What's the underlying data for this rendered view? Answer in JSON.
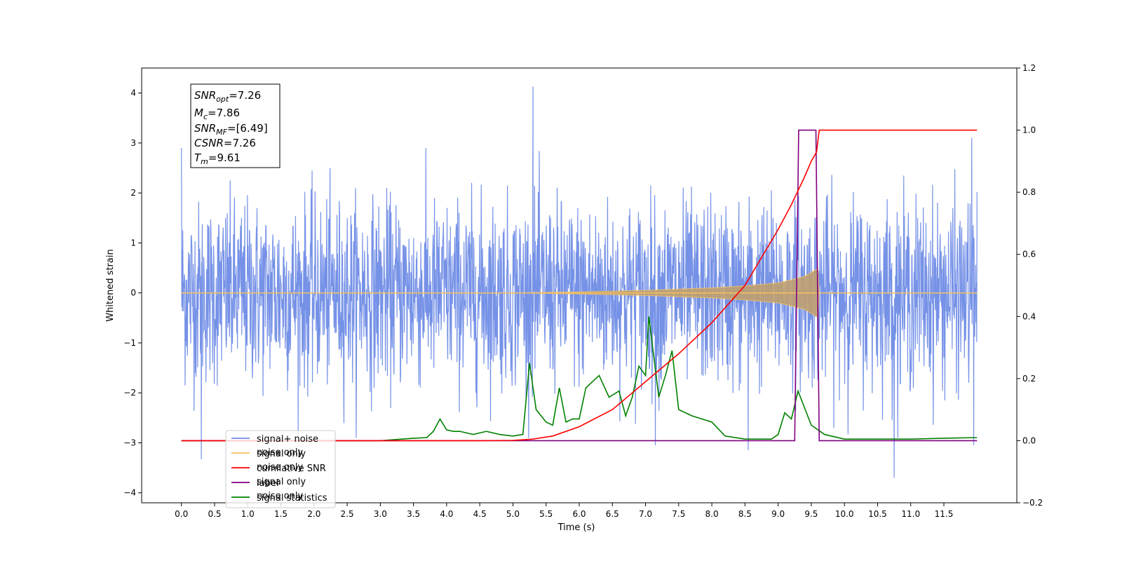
{
  "chart_data": {
    "type": "line",
    "xlabel": "Time (s)",
    "ylabel": "Whitened strain",
    "xlim": [
      -0.6,
      12.6
    ],
    "ylim": [
      -4.2,
      4.5
    ],
    "y2lim": [
      -0.2,
      1.2
    ],
    "x_ticks": [
      0.0,
      0.5,
      1.0,
      1.5,
      2.0,
      2.5,
      3.0,
      3.5,
      4.0,
      4.5,
      5.0,
      5.5,
      6.0,
      6.5,
      7.0,
      7.5,
      8.0,
      8.5,
      9.0,
      9.5,
      10.0,
      10.5,
      11.0,
      11.5
    ],
    "x_tick_labels": [
      "0.0",
      "0.5",
      "1.0",
      "1.5",
      "2.0",
      "2.5",
      "3.0",
      "3.5",
      "4.0",
      "4.5",
      "5.0",
      "5.5",
      "6.0",
      "6.5",
      "7.0",
      "7.5",
      "8.0",
      "8.5",
      "9.0",
      "9.5",
      "10.0",
      "10.5",
      "11.0",
      "11.5"
    ],
    "y_ticks": [
      -4,
      -3,
      -2,
      -1,
      0,
      1,
      2,
      3,
      4
    ],
    "y_tick_labels": [
      "−4",
      "−3",
      "−2",
      "−1",
      "0",
      "1",
      "2",
      "3",
      "4"
    ],
    "y2_ticks": [
      -0.2,
      0.0,
      0.2,
      0.4,
      0.6,
      0.8,
      1.0,
      1.2
    ],
    "y2_tick_labels": [
      "−0.2",
      "0.0",
      "0.2",
      "0.4",
      "0.6",
      "0.8",
      "1.0",
      "1.2"
    ],
    "grid": false,
    "legend_position": "lower-left",
    "series": [
      {
        "name": "signal+ noise",
        "axis": "left",
        "color": "#6f8ce6",
        "style": "dense noise band",
        "x_range": [
          0.0,
          12.0
        ],
        "typical_band": [
          -1.6,
          1.6
        ],
        "spikes": [
          {
            "x": 0.0,
            "y": 2.9
          },
          {
            "x": 0.3,
            "y": -3.33
          },
          {
            "x": 5.3,
            "y": 4.13
          },
          {
            "x": 7.15,
            "y": -3.05
          },
          {
            "x": 8.55,
            "y": -3.15
          },
          {
            "x": 10.75,
            "y": -3.7
          },
          {
            "x": 11.92,
            "y": 3.1
          },
          {
            "x": 11.95,
            "y": -3.05
          }
        ]
      },
      {
        "name": "signal only",
        "axis": "left",
        "color": "#f5c060",
        "style": "chirp envelope",
        "envelope": {
          "x": [
            5.0,
            6.0,
            7.0,
            8.0,
            8.5,
            9.0,
            9.2,
            9.4,
            9.55,
            9.61,
            9.62
          ],
          "amplitude": [
            0.0,
            0.02,
            0.05,
            0.1,
            0.14,
            0.2,
            0.26,
            0.33,
            0.45,
            0.5,
            0.0
          ]
        }
      },
      {
        "name": "cumilative SNR",
        "axis": "right",
        "color": "#ff0000",
        "x": [
          0.0,
          4.5,
          5.0,
          5.3,
          5.6,
          6.0,
          6.5,
          7.0,
          7.5,
          8.0,
          8.5,
          9.0,
          9.2,
          9.4,
          9.5,
          9.58,
          9.62,
          12.0
        ],
        "y": [
          0.0,
          0.0,
          0.001,
          0.005,
          0.015,
          0.045,
          0.1,
          0.19,
          0.28,
          0.38,
          0.5,
          0.68,
          0.76,
          0.85,
          0.9,
          0.93,
          1.0,
          1.0
        ]
      },
      {
        "name": "label",
        "axis": "right",
        "color": "#800080",
        "x": [
          0.0,
          9.25,
          9.31,
          9.57,
          9.62,
          12.0
        ],
        "y": [
          0.0,
          0.0,
          1.0,
          1.0,
          0.0,
          0.0
        ]
      },
      {
        "name": "signal statistics",
        "axis": "right",
        "color": "#008000",
        "x": [
          0.0,
          3.0,
          3.5,
          3.7,
          3.8,
          3.9,
          4.0,
          4.1,
          4.2,
          4.4,
          4.6,
          4.8,
          5.0,
          5.15,
          5.25,
          5.35,
          5.5,
          5.6,
          5.7,
          5.8,
          5.9,
          6.0,
          6.1,
          6.3,
          6.45,
          6.6,
          6.7,
          6.8,
          6.9,
          7.0,
          7.05,
          7.2,
          7.3,
          7.4,
          7.5,
          7.7,
          8.0,
          8.2,
          8.5,
          8.9,
          9.0,
          9.1,
          9.2,
          9.3,
          9.5,
          9.7,
          10.0,
          11.0,
          11.5,
          12.0
        ],
        "y": [
          0.0,
          0.0,
          0.008,
          0.01,
          0.03,
          0.07,
          0.035,
          0.03,
          0.03,
          0.02,
          0.03,
          0.02,
          0.015,
          0.02,
          0.25,
          0.1,
          0.06,
          0.05,
          0.17,
          0.06,
          0.07,
          0.07,
          0.17,
          0.21,
          0.14,
          0.16,
          0.08,
          0.14,
          0.24,
          0.21,
          0.4,
          0.14,
          0.21,
          0.29,
          0.1,
          0.08,
          0.06,
          0.015,
          0.005,
          0.005,
          0.02,
          0.09,
          0.07,
          0.16,
          0.05,
          0.02,
          0.005,
          0.005,
          0.008,
          0.01
        ]
      }
    ],
    "legend_items": [
      {
        "label": "signal+ noise",
        "color": "#6f8ce6"
      },
      {
        "label": "signal only",
        "color": "#f5c060"
      },
      {
        "label": "cumilative SNR",
        "color": "#ff0000"
      },
      {
        "label": "label",
        "color": "#800080"
      },
      {
        "label": "signal statistics",
        "color": "#008000"
      }
    ],
    "legend_ghost_text": [
      "noise only",
      "noise only",
      "signal only",
      "noise only"
    ],
    "annotation_box": [
      {
        "symbol": "SNR",
        "sub": "opt",
        "value": "=7.26"
      },
      {
        "symbol": "M",
        "sub": "c",
        "value": "=7.86"
      },
      {
        "symbol": "SNR",
        "sub": "MF",
        "value": "=[6.49]"
      },
      {
        "symbol": "CSNR",
        "sub": "",
        "value": "=7.26"
      },
      {
        "symbol": "T",
        "sub": "m",
        "value": "=9.61"
      }
    ]
  }
}
